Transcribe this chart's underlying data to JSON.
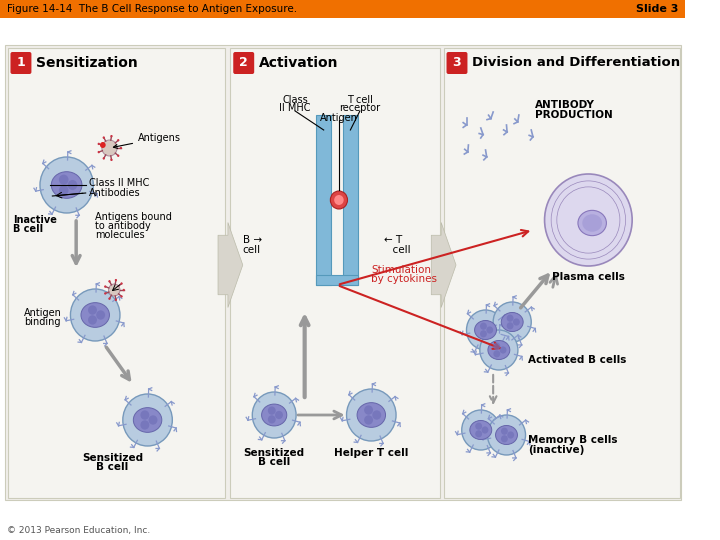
{
  "title_left": "Figure 14-14  The B Cell Response to Antigen Exposure.",
  "title_right": "Slide 3",
  "copyright": "© 2013 Pearson Education, Inc.",
  "bg": "#ffffff",
  "header_color": "#f07000",
  "content_bg": "#f0eeea",
  "section_bg": "#f5f4f0",
  "section_border": "#ccccbb",
  "badge_color": "#cc2222",
  "arrow_between_color": "#d8d5cc",
  "gray_arrow": "#999999",
  "red_arrow": "#cc2222",
  "stimulation_color": "#cc2222",
  "cell_body": "#b8cce0",
  "cell_nucleus": "#9090c8",
  "cell_border": "#7799bb",
  "plasma_body": "#c8c0e0",
  "plasma_nucleus": "#b0a8d8",
  "mhc_color": "#80b8d8",
  "antibody_color": "#8899cc"
}
